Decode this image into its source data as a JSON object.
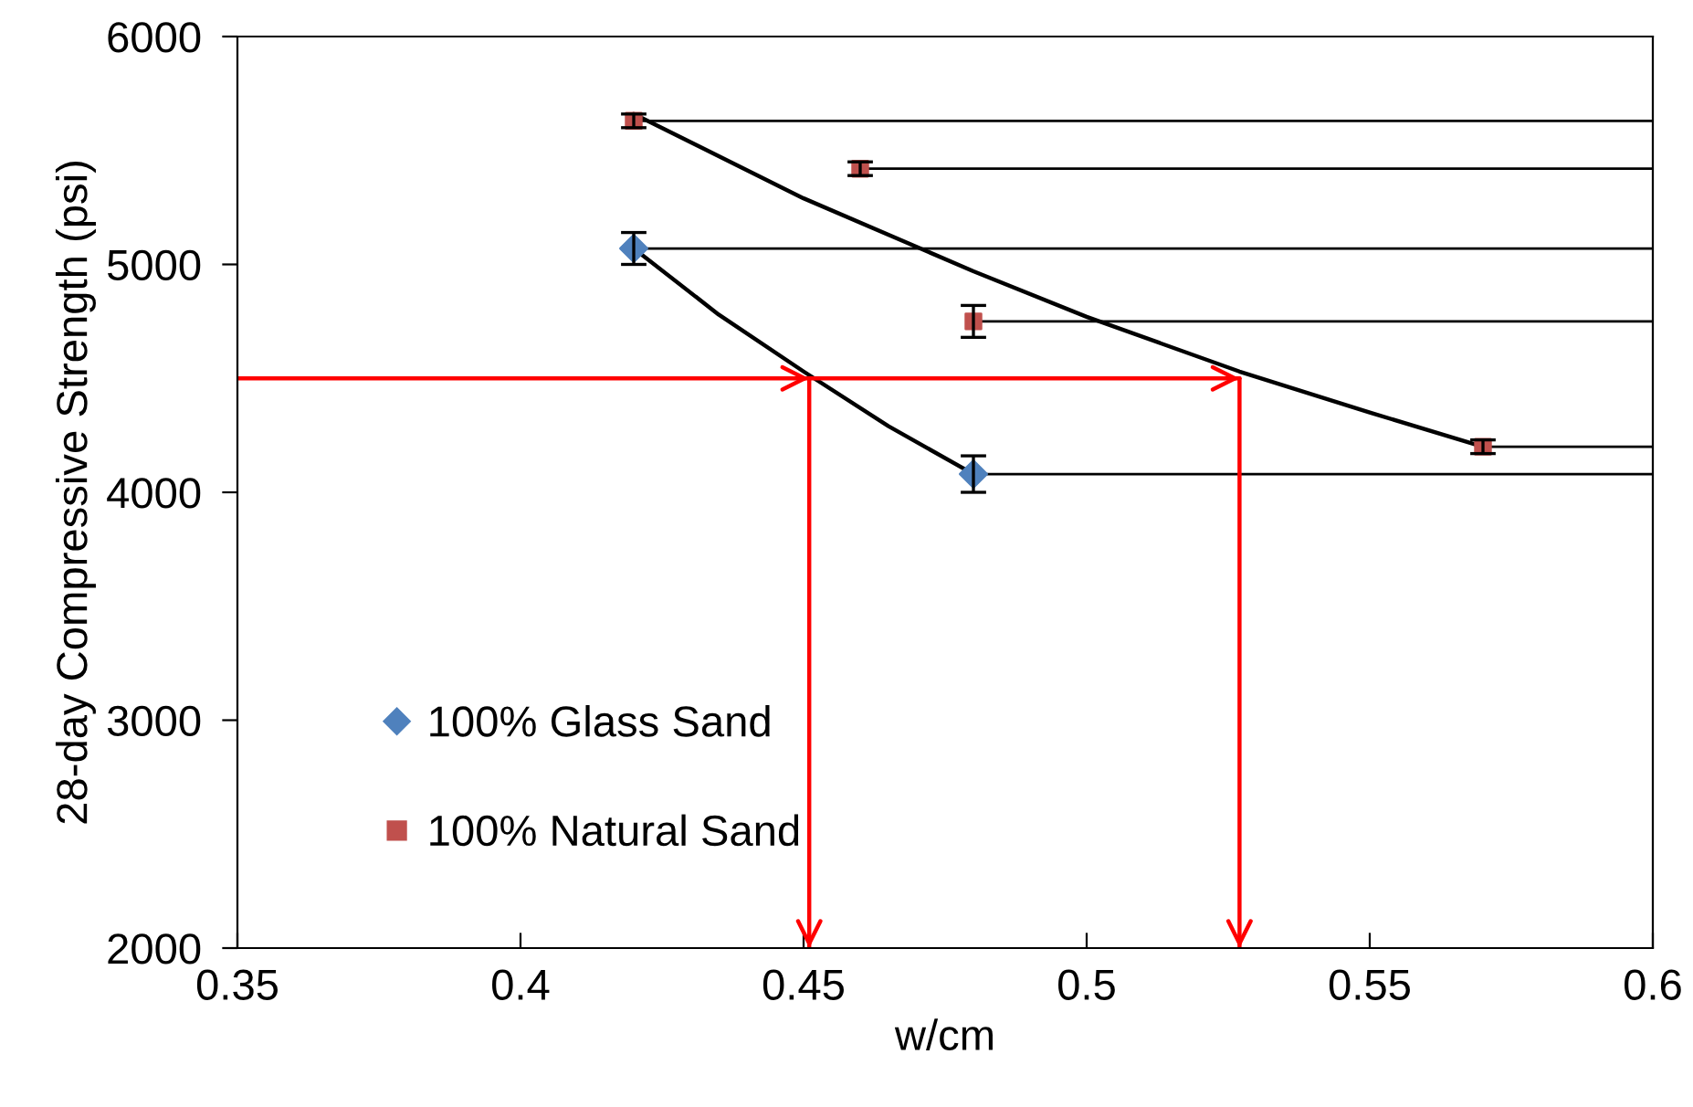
{
  "chart_data": {
    "type": "scatter",
    "xlabel": "w/cm",
    "ylabel": "28-day Compressive Strength (psi)",
    "xlim": [
      0.35,
      0.6
    ],
    "xticks": [
      0.35,
      0.4,
      0.45,
      0.5,
      0.55,
      0.6
    ],
    "ylim": [
      2000,
      6000
    ],
    "yticks": [
      2000,
      3000,
      4000,
      5000,
      6000
    ],
    "grid": false,
    "legend": "bottom left",
    "series": [
      {
        "type": "line",
        "color": "#000000",
        "marker": "none",
        "x": [
          0.42,
          0.435,
          0.45,
          0.465,
          0.48
        ],
        "values": [
          5070,
          4780,
          4530,
          4290,
          4080
        ]
      },
      {
        "type": "line",
        "color": "#000000",
        "marker": "none",
        "x": [
          0.42,
          0.45,
          0.48,
          0.5,
          0.527,
          0.55,
          0.57
        ],
        "values": [
          5660,
          5290,
          4970,
          4770,
          4530,
          4350,
          4200
        ]
      },
      {
        "type": "line",
        "color": "#000000",
        "marker": "none",
        "x": [
          0.42,
          0.6
        ],
        "values": [
          5070,
          5070
        ]
      },
      {
        "type": "line",
        "color": "#000000",
        "marker": "none",
        "x": [
          0.48,
          0.6
        ],
        "values": [
          4080,
          4080
        ]
      },
      {
        "type": "line",
        "color": "#000000",
        "marker": "none",
        "x": [
          0.42,
          0.6
        ],
        "values": [
          5630,
          5630
        ]
      },
      {
        "type": "line",
        "color": "#000000",
        "marker": "none",
        "x": [
          0.46,
          0.6
        ],
        "values": [
          5420,
          5420
        ]
      },
      {
        "type": "line",
        "color": "#000000",
        "marker": "none",
        "x": [
          0.48,
          0.6
        ],
        "values": [
          4750,
          4750
        ]
      },
      {
        "type": "line",
        "color": "#000000",
        "marker": "none",
        "x": [
          0.57,
          0.6
        ],
        "values": [
          4200,
          4200
        ]
      },
      {
        "type": "line",
        "color": "#ff0000",
        "marker": "none",
        "x": [
          0.35,
          0.451,
          0.527
        ],
        "values": [
          4500,
          4500,
          4500
        ]
      },
      {
        "type": "line",
        "color": "#ff0000",
        "marker": "none",
        "x": [
          0.451,
          0.451
        ],
        "values": [
          4500,
          2000
        ]
      },
      {
        "type": "line",
        "color": "#ff0000",
        "marker": "none",
        "x": [
          0.527,
          0.527
        ],
        "values": [
          4500,
          2000
        ]
      },
      {
        "name": "100% Glass Sand",
        "color": "#4f81bd",
        "marker": "diamond",
        "x": [
          0.42,
          0.48
        ],
        "values": [
          5070,
          4080
        ],
        "errors": [
          70,
          80
        ]
      },
      {
        "name": "100% Natural Sand",
        "color": "#c0504d",
        "marker": "square",
        "x": [
          0.42,
          0.46,
          0.48,
          0.57
        ],
        "values": [
          5630,
          5420,
          4750,
          4200
        ],
        "errors": [
          30,
          30,
          70,
          30
        ]
      }
    ]
  }
}
